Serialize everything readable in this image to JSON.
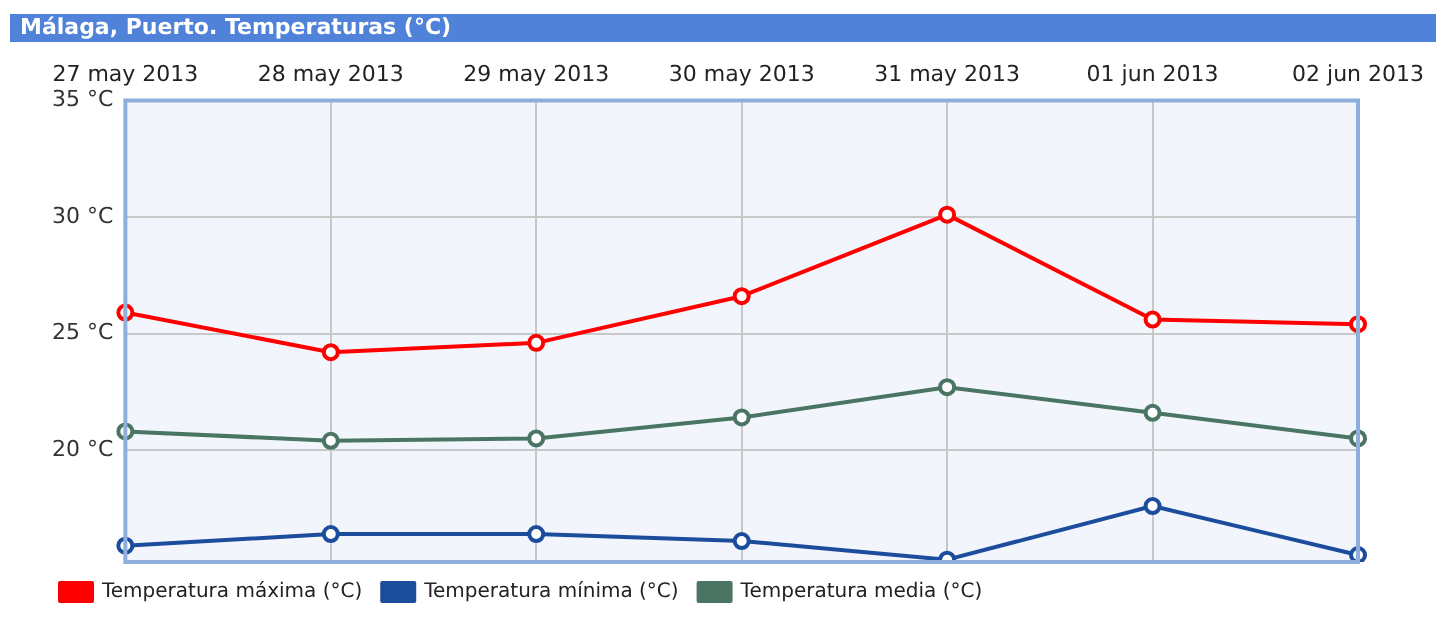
{
  "chart_data": {
    "type": "line",
    "title": "Málaga, Puerto. Temperaturas (°C)",
    "categories": [
      "27 may 2013",
      "28 may 2013",
      "29 may 2013",
      "30 may 2013",
      "31 may 2013",
      "01 jun 2013",
      "02 jun 2013"
    ],
    "series": [
      {
        "name": "Temperatura máxima (°C)",
        "color": "#ff0000",
        "values": [
          25.9,
          24.2,
          24.6,
          26.6,
          30.1,
          25.6,
          25.4
        ]
      },
      {
        "name": "Temperatura mínima (°C)",
        "color": "#1c4c9c",
        "values": [
          15.9,
          16.4,
          16.4,
          16.1,
          15.3,
          17.6,
          15.5
        ]
      },
      {
        "name": "Temperatura media (°C)",
        "color": "#4a7563",
        "values": [
          20.8,
          20.4,
          20.5,
          21.4,
          22.7,
          21.6,
          20.5
        ]
      }
    ],
    "ylim": [
      15.2,
      35
    ],
    "yticks": [
      {
        "value": 20,
        "label": "20 °C"
      },
      {
        "value": 25,
        "label": "25 °C"
      },
      {
        "value": 30,
        "label": "30 °C"
      },
      {
        "value": 35,
        "label": "35 °C"
      }
    ],
    "grid": true,
    "legend": "bottom left",
    "marker": "circle",
    "line_style": "solid"
  }
}
